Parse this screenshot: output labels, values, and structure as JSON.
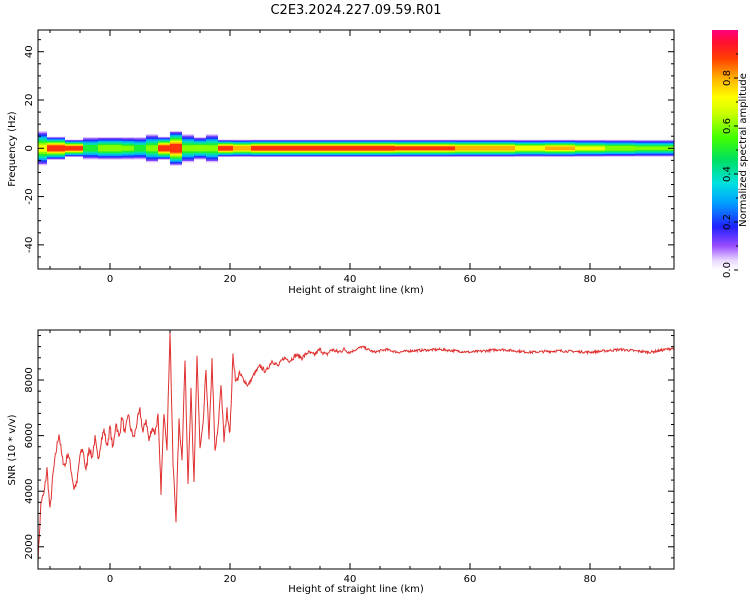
{
  "title": "C2E3.2024.227.09.59.R01",
  "colorbar": {
    "label": "Normalized spectral amplitude",
    "ticks": [
      0.0,
      0.2,
      0.4,
      0.6,
      0.8
    ],
    "tick_labels": [
      "0.0",
      "0.2",
      "0.4",
      "0.6",
      "0.8"
    ],
    "range": [
      0,
      1
    ]
  },
  "chart_data": [
    {
      "type": "heatmap",
      "xlabel": "Height of straight line (km)",
      "ylabel": "Frequency (Hz)",
      "xlim": [
        -12,
        94
      ],
      "ylim": [
        -50,
        49
      ],
      "xticks": [
        0,
        20,
        40,
        60,
        80
      ],
      "yticks": [
        -40,
        -20,
        0,
        20,
        40
      ],
      "xtick_labels": [
        "0",
        "20",
        "40",
        "60",
        "80"
      ],
      "ytick_labels": [
        "-40",
        "-20",
        "0",
        "20",
        "40"
      ],
      "band_center_hz": 0,
      "band": [
        {
          "x": -12,
          "width_hz": 6,
          "peak": 0.7
        },
        {
          "x": -9,
          "width_hz": 4,
          "peak": 0.95
        },
        {
          "x": -6,
          "width_hz": 3,
          "peak": 0.95
        },
        {
          "x": -3,
          "width_hz": 4,
          "peak": 0.55
        },
        {
          "x": -1,
          "width_hz": 4,
          "peak": 0.65
        },
        {
          "x": 1,
          "width_hz": 4,
          "peak": 0.65
        },
        {
          "x": 3,
          "width_hz": 4,
          "peak": 0.6
        },
        {
          "x": 5,
          "width_hz": 4,
          "peak": 0.55
        },
        {
          "x": 7,
          "width_hz": 5,
          "peak": 0.6
        },
        {
          "x": 9,
          "width_hz": 4,
          "peak": 0.95
        },
        {
          "x": 11,
          "width_hz": 6,
          "peak": 0.95
        },
        {
          "x": 13,
          "width_hz": 5,
          "peak": 0.6
        },
        {
          "x": 15,
          "width_hz": 4,
          "peak": 0.65
        },
        {
          "x": 17,
          "width_hz": 5,
          "peak": 0.6
        },
        {
          "x": 19,
          "width_hz": 3,
          "peak": 0.95
        },
        {
          "x": 22,
          "width_hz": 3,
          "peak": 0.85
        },
        {
          "x": 25,
          "width_hz": 3,
          "peak": 0.95
        },
        {
          "x": 30,
          "width_hz": 3,
          "peak": 0.95
        },
        {
          "x": 35,
          "width_hz": 3,
          "peak": 0.95
        },
        {
          "x": 40,
          "width_hz": 3,
          "peak": 0.95
        },
        {
          "x": 45,
          "width_hz": 3,
          "peak": 0.95
        },
        {
          "x": 50,
          "width_hz": 3,
          "peak": 0.9
        },
        {
          "x": 55,
          "width_hz": 3,
          "peak": 0.9
        },
        {
          "x": 60,
          "width_hz": 3,
          "peak": 0.85
        },
        {
          "x": 65,
          "width_hz": 3,
          "peak": 0.85
        },
        {
          "x": 70,
          "width_hz": 3,
          "peak": 0.75
        },
        {
          "x": 75,
          "width_hz": 3,
          "peak": 0.8
        },
        {
          "x": 80,
          "width_hz": 3,
          "peak": 0.7
        },
        {
          "x": 85,
          "width_hz": 3,
          "peak": 0.65
        },
        {
          "x": 90,
          "width_hz": 3,
          "peak": 0.6
        },
        {
          "x": 94,
          "width_hz": 3,
          "peak": 0.6
        }
      ]
    },
    {
      "type": "line",
      "xlabel": "Height of straight line (km)",
      "ylabel": "SNR (10 * v/v)",
      "xlim": [
        -12,
        94
      ],
      "ylim": [
        1200,
        9800
      ],
      "xticks": [
        0,
        20,
        40,
        60,
        80
      ],
      "yticks": [
        2000,
        4000,
        6000,
        8000
      ],
      "xtick_labels": [
        "0",
        "20",
        "40",
        "60",
        "80"
      ],
      "ytick_labels": [
        "2000",
        "4000",
        "6000",
        "8000"
      ],
      "color": "#e03030",
      "series": [
        {
          "x": [
            -12,
            -11.5,
            -11,
            -10.5,
            -10,
            -9.5,
            -9,
            -8.5,
            -8,
            -7.5,
            -7,
            -6.5,
            -6,
            -5.5,
            -5,
            -4.5,
            -4,
            -3.5,
            -3,
            -2.5,
            -2,
            -1.5,
            -1,
            -0.5,
            0,
            0.5,
            1,
            1.5,
            2,
            2.5,
            3,
            3.5,
            4,
            4.5,
            5,
            5.5,
            6,
            6.5,
            7,
            7.5,
            8,
            8.5,
            9,
            9.5,
            10,
            10.5,
            11,
            11.5,
            12,
            12.5,
            13,
            13.5,
            14,
            14.5,
            15,
            15.5,
            16,
            16.5,
            17,
            17.5,
            18,
            18.5,
            19,
            19.5,
            20,
            20.5,
            21,
            21.5,
            22,
            23,
            24,
            25,
            26,
            27,
            28,
            29,
            30,
            31,
            32,
            33,
            34,
            35,
            36,
            37,
            38,
            39,
            40,
            42,
            44,
            46,
            48,
            50,
            55,
            60,
            65,
            70,
            75,
            80,
            85,
            90,
            94
          ],
          "y": [
            1500,
            3600,
            3900,
            4800,
            3300,
            4600,
            5400,
            6100,
            5200,
            4900,
            5400,
            4800,
            4100,
            4300,
            5300,
            5500,
            4700,
            5600,
            5200,
            5900,
            5100,
            5800,
            6200,
            5600,
            6300,
            5500,
            6500,
            5900,
            6700,
            6000,
            6800,
            6200,
            5900,
            6500,
            6900,
            6100,
            6600,
            5800,
            6300,
            6100,
            6700,
            4000,
            6900,
            5600,
            9800,
            5000,
            3000,
            6500,
            5200,
            8700,
            4400,
            7600,
            4200,
            8900,
            5500,
            6300,
            8400,
            5800,
            8700,
            5400,
            6200,
            7900,
            5800,
            6900,
            6100,
            8900,
            7900,
            8200,
            8100,
            7800,
            8200,
            8500,
            8300,
            8700,
            8500,
            8800,
            8700,
            8900,
            8800,
            9000,
            8900,
            9100,
            8900,
            9100,
            9000,
            9100,
            9000,
            9200,
            9000,
            9100,
            9000,
            9050,
            9100,
            9000,
            9100,
            9000,
            9050,
            9000,
            9100,
            9000,
            9150
          ]
        }
      ]
    }
  ]
}
